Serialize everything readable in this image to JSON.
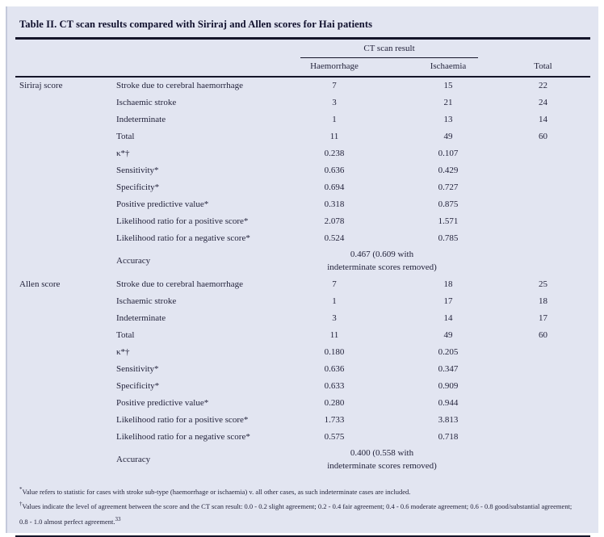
{
  "table": {
    "title": "Table II. CT scan results compared with Siriraj and Allen scores for Hai patients",
    "header": {
      "spanner": "CT scan result",
      "columns": [
        "Haemorrhage",
        "Ischaemia",
        "Total"
      ]
    },
    "sections": [
      {
        "group": "Siriraj score",
        "rows": [
          {
            "label": "Stroke due to cerebral haemorrhage",
            "haemorrhage": "7",
            "ischaemia": "15",
            "total": "22"
          },
          {
            "label": "Ischaemic stroke",
            "haemorrhage": "3",
            "ischaemia": "21",
            "total": "24"
          },
          {
            "label": "Indeterminate",
            "haemorrhage": "1",
            "ischaemia": "13",
            "total": "14"
          },
          {
            "label": "Total",
            "haemorrhage": "11",
            "ischaemia": "49",
            "total": "60"
          },
          {
            "label": "κ*†",
            "haemorrhage": "0.238",
            "ischaemia": "0.107"
          },
          {
            "label": "Sensitivity*",
            "haemorrhage": "0.636",
            "ischaemia": "0.429"
          },
          {
            "label": "Specificity*",
            "haemorrhage": "0.694",
            "ischaemia": "0.727"
          },
          {
            "label": "Positive predictive value*",
            "haemorrhage": "0.318",
            "ischaemia": "0.875"
          },
          {
            "label": "Likelihood ratio for a positive score*",
            "haemorrhage": "2.078",
            "ischaemia": "1.571"
          },
          {
            "label": "Likelihood ratio for a negative score*",
            "haemorrhage": "0.524",
            "ischaemia": "0.785"
          },
          {
            "label": "Accuracy",
            "colspan": 2,
            "value": "0.467 (0.609 with\nindeterminate scores removed)"
          }
        ]
      },
      {
        "group": "Allen score",
        "rows": [
          {
            "label": "Stroke due to cerebral haemorrhage",
            "haemorrhage": "7",
            "ischaemia": "18",
            "total": "25"
          },
          {
            "label": "Ischaemic stroke",
            "haemorrhage": "1",
            "ischaemia": "17",
            "total": "18"
          },
          {
            "label": "Indeterminate",
            "haemorrhage": "3",
            "ischaemia": "14",
            "total": "17"
          },
          {
            "label": "Total",
            "haemorrhage": "11",
            "ischaemia": "49",
            "total": "60"
          },
          {
            "label": "κ*†",
            "haemorrhage": "0.180",
            "ischaemia": "0.205"
          },
          {
            "label": "Sensitivity*",
            "haemorrhage": "0.636",
            "ischaemia": "0.347"
          },
          {
            "label": "Specificity*",
            "haemorrhage": "0.633",
            "ischaemia": "0.909"
          },
          {
            "label": "Positive predictive value*",
            "haemorrhage": "0.280",
            "ischaemia": "0.944"
          },
          {
            "label": "Likelihood ratio for a positive score*",
            "haemorrhage": "1.733",
            "ischaemia": "3.813"
          },
          {
            "label": "Likelihood ratio for a negative score*",
            "haemorrhage": "0.575",
            "ischaemia": "0.718"
          },
          {
            "label": "Accuracy",
            "colspan": 2,
            "value": "0.400 (0.558 with\nindeterminate scores removed)"
          }
        ]
      }
    ],
    "footnotes": [
      {
        "marker": "*",
        "text": "Value refers to statistic for cases with stroke sub-type (haemorrhage or ischaemia) v. all other cases, as such indeterminate cases are included."
      },
      {
        "marker": "†",
        "text": "Values indicate the level of agreement between the score and the CT scan result: 0.0 - 0.2 slight agreement; 0.2 - 0.4 fair agreement; 0.4 - 0.6 moderate agreement; 0.6 - 0.8 good/substantial agreement; 0.8 - 1.0 almost perfect agreement.",
        "ref": "33"
      }
    ]
  },
  "colors": {
    "panel_background": "#e2e5f1",
    "text": "#24243c",
    "rule": "#15152a"
  }
}
